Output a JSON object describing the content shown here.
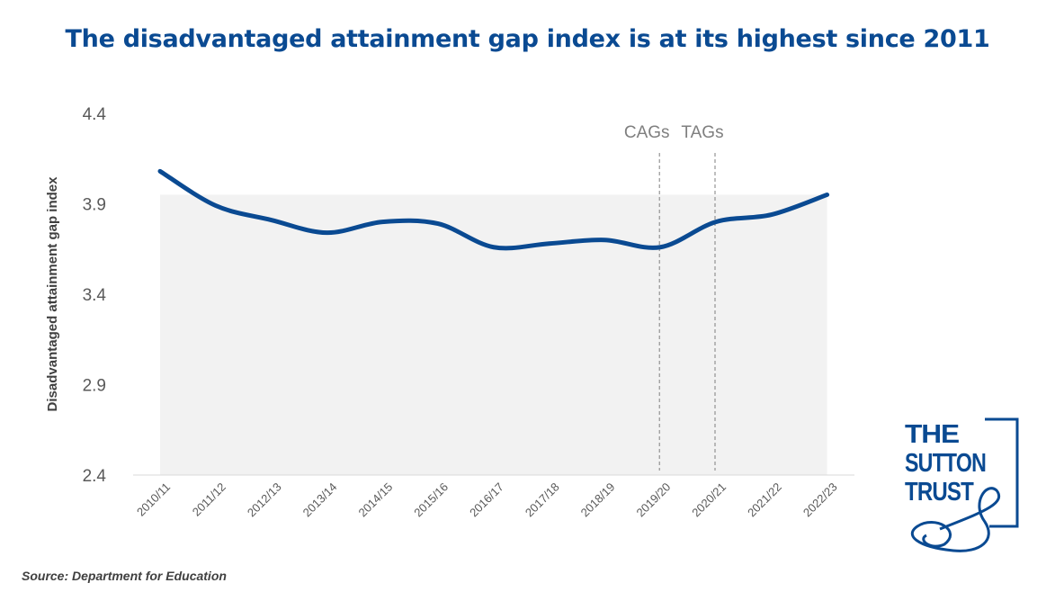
{
  "title": "The disadvantaged attainment gap index is at its highest since 2011",
  "source": "Source: Department for Education",
  "logo_text": [
    "THE",
    "SUTTON",
    "TRUST"
  ],
  "colors": {
    "line": "#0a4a92",
    "title": "#0a4a92",
    "shade": "#f2f2f2"
  },
  "chart_data": {
    "type": "line",
    "title": "The disadvantaged attainment gap index is at its highest since 2011",
    "xlabel": "",
    "ylabel": "Disadvantaged attainment gap index",
    "ylim": [
      2.4,
      4.4
    ],
    "yticks": [
      "2.4",
      "2.9",
      "3.4",
      "3.9",
      "4.4"
    ],
    "grid": false,
    "categories": [
      "2010/11",
      "2011/12",
      "2012/13",
      "2013/14",
      "2014/15",
      "2015/16",
      "2016/17",
      "2017/18",
      "2018/19",
      "2019/20",
      "2020/21",
      "2021/22",
      "2022/23"
    ],
    "values": [
      4.08,
      3.89,
      3.81,
      3.74,
      3.8,
      3.79,
      3.66,
      3.68,
      3.7,
      3.66,
      3.8,
      3.84,
      3.95
    ],
    "shaded_level": 3.95,
    "annotations": [
      {
        "label": "CAGs",
        "category": "2019/20"
      },
      {
        "label": "TAGs",
        "category": "2020/21"
      }
    ]
  }
}
